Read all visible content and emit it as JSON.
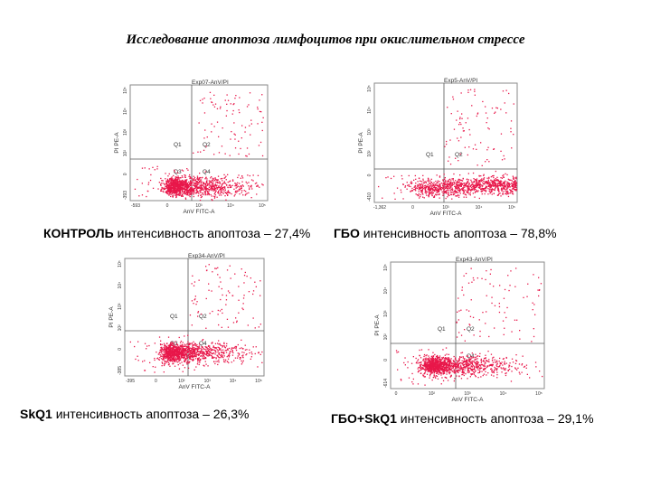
{
  "title": "Исследование апоптоза лимфоцитов при окислительном стрессе",
  "colors": {
    "dots": "#e8174a",
    "frame": "#8a8a8a",
    "text": "#000000"
  },
  "chart_data": [
    {
      "type": "scatter",
      "title": "Exp07-AnV/PI",
      "xlabel": "AnV FITC-A",
      "ylabel": "PI PE-A",
      "quadrants": [
        "Q1",
        "Q2",
        "Q3",
        "Q4"
      ],
      "x_ticks": [
        "-593",
        "0",
        "10³",
        "10⁴",
        "10⁵"
      ],
      "y_ticks": [
        "-393",
        "0",
        "10²",
        "10³",
        "10⁴",
        "10⁵"
      ],
      "caption_name": "КОНТРОЛЬ",
      "caption_text": "интенсивность апоптоза – 27,4%",
      "apoptosis_percent": 27.4
    },
    {
      "type": "scatter",
      "title": "Exp5-AnV/PI",
      "xlabel": "AnV FITC-A",
      "ylabel": "PI PE-A",
      "quadrants": [
        "Q1",
        "Q2",
        "",
        ""
      ],
      "x_ticks": [
        "-1,362",
        "0",
        "10³",
        "10⁴",
        "10⁵"
      ],
      "y_ticks": [
        "-410",
        "0",
        "10²",
        "10³",
        "10⁴",
        "10⁵"
      ],
      "caption_name": "ГБО",
      "caption_text": "интенсивность апоптоза – 78,8%",
      "apoptosis_percent": 78.8
    },
    {
      "type": "scatter",
      "title": "Exp34-AnV/PI",
      "xlabel": "AnV FITC-A",
      "ylabel": "PI PE-A",
      "quadrants": [
        "Q1",
        "Q2",
        "Q3",
        "Q4"
      ],
      "x_ticks": [
        "-395",
        "0",
        "10²",
        "10³",
        "10⁴",
        "10⁵"
      ],
      "y_ticks": [
        "-385",
        "0",
        "10²",
        "10³",
        "10⁴",
        "10⁵"
      ],
      "caption_name": "SkQ1",
      "caption_text": "интенсивность апоптоза – 26,3%",
      "apoptosis_percent": 26.3
    },
    {
      "type": "scatter",
      "title": "Exp43-AnV/PI",
      "xlabel": "AnV FITC-A",
      "ylabel": "PI PE-A",
      "quadrants": [
        "Q1",
        "Q2",
        "",
        "Q4"
      ],
      "x_ticks": [
        "0",
        "10²",
        "10³",
        "10⁴",
        "10⁵"
      ],
      "y_ticks": [
        "-614",
        "0",
        "10²",
        "10³",
        "10⁴",
        "10⁵"
      ],
      "caption_name": "ГБО+SkQ1",
      "caption_text": "интенсивность апоптоза – 29,1%",
      "apoptosis_percent": 29.1
    }
  ]
}
